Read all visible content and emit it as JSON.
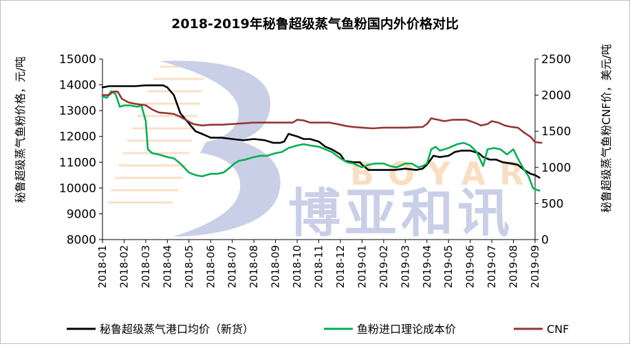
{
  "chart_data": {
    "type": "line",
    "title": "2018-2019年秘鲁超级蒸气鱼粉国内外价格对比",
    "ylabel_left": "秘鲁超级蒸气鱼粉价格，元/吨",
    "ylabel_right": "秘鲁超级蒸气鱼粉CNF价，美元/吨",
    "watermark": {
      "text_cn": "博亚和讯",
      "text_en": "BOYAR"
    },
    "ylim_left": [
      8000,
      15000
    ],
    "yticks_left": [
      "8000",
      "9000",
      "10000",
      "11000",
      "12000",
      "13000",
      "14000",
      "15000"
    ],
    "ylim_right": [
      0,
      2500
    ],
    "yticks_right": [
      "0",
      "500",
      "1000",
      "1500",
      "2000",
      "2500"
    ],
    "x_categories": [
      "2018-01",
      "2018-02",
      "2018-03",
      "2018-04",
      "2018-05",
      "2018-06",
      "2018-07",
      "2018-08",
      "2018-09",
      "2018-10",
      "2018-11",
      "2018-12",
      "2019-01",
      "2019-02",
      "2019-03",
      "2019-04",
      "2019-05",
      "2019-06",
      "2019-07",
      "2019-08",
      "2019-09"
    ],
    "grid": false,
    "legend_position": "bottom",
    "series": [
      {
        "name": "秘鲁超级蒸气港口均价（新货）",
        "axis": "left",
        "color": "#000000",
        "points": [
          [
            0.0,
            13900
          ],
          [
            0.3,
            13950
          ],
          [
            1.0,
            13950
          ],
          [
            1.5,
            13950
          ],
          [
            2.0,
            13980
          ],
          [
            2.8,
            13980
          ],
          [
            3.0,
            13900
          ],
          [
            3.3,
            13600
          ],
          [
            3.6,
            12900
          ],
          [
            4.0,
            12500
          ],
          [
            4.3,
            12200
          ],
          [
            4.6,
            12100
          ],
          [
            5.0,
            11950
          ],
          [
            5.5,
            11950
          ],
          [
            6.0,
            11900
          ],
          [
            6.5,
            11850
          ],
          [
            7.0,
            11900
          ],
          [
            7.5,
            11850
          ],
          [
            7.9,
            11750
          ],
          [
            8.2,
            11750
          ],
          [
            8.4,
            11800
          ],
          [
            8.6,
            12100
          ],
          [
            9.0,
            12000
          ],
          [
            9.3,
            11900
          ],
          [
            9.6,
            11900
          ],
          [
            10.0,
            11800
          ],
          [
            10.3,
            11600
          ],
          [
            10.6,
            11500
          ],
          [
            11.0,
            11300
          ],
          [
            11.2,
            11050
          ],
          [
            11.6,
            11000
          ],
          [
            11.9,
            11000
          ],
          [
            12.0,
            10900
          ],
          [
            12.3,
            10700
          ],
          [
            12.6,
            10700
          ],
          [
            13.0,
            10700
          ],
          [
            13.5,
            10700
          ],
          [
            14.0,
            10750
          ],
          [
            14.5,
            10700
          ],
          [
            14.8,
            10750
          ],
          [
            15.0,
            10900
          ],
          [
            15.3,
            11250
          ],
          [
            15.6,
            11200
          ],
          [
            16.0,
            11250
          ],
          [
            16.3,
            11400
          ],
          [
            16.6,
            11450
          ],
          [
            17.0,
            11450
          ],
          [
            17.4,
            11350
          ],
          [
            17.6,
            11200
          ],
          [
            17.9,
            11100
          ],
          [
            18.2,
            11100
          ],
          [
            18.5,
            11000
          ],
          [
            18.9,
            10950
          ],
          [
            19.2,
            10900
          ],
          [
            19.5,
            10700
          ],
          [
            19.8,
            10550
          ],
          [
            20.0,
            10500
          ],
          [
            20.2,
            10400
          ]
        ]
      },
      {
        "name": "鱼粉进口理论成本价",
        "axis": "left",
        "color": "#00b050",
        "points": [
          [
            0.0,
            13550
          ],
          [
            0.2,
            13500
          ],
          [
            0.4,
            13750
          ],
          [
            0.6,
            13650
          ],
          [
            0.8,
            13150
          ],
          [
            1.0,
            13200
          ],
          [
            1.3,
            13200
          ],
          [
            1.6,
            13150
          ],
          [
            1.8,
            13200
          ],
          [
            2.0,
            12600
          ],
          [
            2.1,
            11500
          ],
          [
            2.3,
            11350
          ],
          [
            2.6,
            11300
          ],
          [
            3.0,
            11200
          ],
          [
            3.3,
            11150
          ],
          [
            3.6,
            10950
          ],
          [
            4.0,
            10600
          ],
          [
            4.3,
            10500
          ],
          [
            4.6,
            10450
          ],
          [
            5.0,
            10550
          ],
          [
            5.3,
            10550
          ],
          [
            5.6,
            10600
          ],
          [
            5.9,
            10800
          ],
          [
            6.1,
            10950
          ],
          [
            6.3,
            11050
          ],
          [
            6.6,
            11100
          ],
          [
            7.0,
            11200
          ],
          [
            7.3,
            11250
          ],
          [
            7.6,
            11250
          ],
          [
            8.0,
            11350
          ],
          [
            8.3,
            11400
          ],
          [
            8.6,
            11550
          ],
          [
            9.0,
            11650
          ],
          [
            9.3,
            11700
          ],
          [
            9.6,
            11650
          ],
          [
            10.0,
            11600
          ],
          [
            10.3,
            11500
          ],
          [
            10.6,
            11400
          ],
          [
            11.0,
            11150
          ],
          [
            11.3,
            11000
          ],
          [
            11.6,
            10950
          ],
          [
            12.0,
            10800
          ],
          [
            12.3,
            10900
          ],
          [
            12.6,
            10950
          ],
          [
            13.0,
            10950
          ],
          [
            13.3,
            10850
          ],
          [
            13.6,
            10800
          ],
          [
            14.0,
            10950
          ],
          [
            14.3,
            10950
          ],
          [
            14.6,
            10800
          ],
          [
            14.8,
            10850
          ],
          [
            15.0,
            10950
          ],
          [
            15.2,
            11500
          ],
          [
            15.4,
            11600
          ],
          [
            15.6,
            11450
          ],
          [
            16.0,
            11550
          ],
          [
            16.4,
            11700
          ],
          [
            16.7,
            11750
          ],
          [
            17.0,
            11650
          ],
          [
            17.3,
            11400
          ],
          [
            17.6,
            10850
          ],
          [
            17.8,
            11500
          ],
          [
            18.1,
            11550
          ],
          [
            18.4,
            11500
          ],
          [
            18.7,
            11300
          ],
          [
            19.0,
            11500
          ],
          [
            19.2,
            11150
          ],
          [
            19.5,
            10700
          ],
          [
            19.7,
            10450
          ],
          [
            19.9,
            10000
          ],
          [
            20.0,
            9950
          ],
          [
            20.2,
            9900
          ]
        ]
      },
      {
        "name": "CNF",
        "axis": "right",
        "color": "#943634",
        "points": [
          [
            0.0,
            2000
          ],
          [
            0.3,
            2000
          ],
          [
            0.5,
            2050
          ],
          [
            0.7,
            2050
          ],
          [
            0.9,
            1950
          ],
          [
            1.2,
            1900
          ],
          [
            1.5,
            1880
          ],
          [
            2.0,
            1860
          ],
          [
            2.3,
            1800
          ],
          [
            2.6,
            1760
          ],
          [
            3.0,
            1750
          ],
          [
            3.3,
            1740
          ],
          [
            3.6,
            1700
          ],
          [
            3.9,
            1650
          ],
          [
            4.2,
            1600
          ],
          [
            4.6,
            1580
          ],
          [
            5.0,
            1590
          ],
          [
            5.5,
            1590
          ],
          [
            6.0,
            1600
          ],
          [
            7.0,
            1620
          ],
          [
            8.0,
            1620
          ],
          [
            8.8,
            1620
          ],
          [
            9.0,
            1660
          ],
          [
            9.3,
            1650
          ],
          [
            9.6,
            1620
          ],
          [
            10.0,
            1620
          ],
          [
            10.5,
            1620
          ],
          [
            11.0,
            1590
          ],
          [
            11.3,
            1570
          ],
          [
            11.6,
            1560
          ],
          [
            12.0,
            1550
          ],
          [
            12.5,
            1540
          ],
          [
            13.0,
            1550
          ],
          [
            14.0,
            1550
          ],
          [
            14.8,
            1560
          ],
          [
            15.0,
            1600
          ],
          [
            15.2,
            1680
          ],
          [
            15.5,
            1660
          ],
          [
            15.8,
            1640
          ],
          [
            16.2,
            1660
          ],
          [
            16.8,
            1660
          ],
          [
            17.2,
            1620
          ],
          [
            17.5,
            1580
          ],
          [
            17.8,
            1600
          ],
          [
            18.0,
            1640
          ],
          [
            18.3,
            1620
          ],
          [
            18.6,
            1580
          ],
          [
            18.9,
            1560
          ],
          [
            19.2,
            1550
          ],
          [
            19.5,
            1480
          ],
          [
            19.8,
            1420
          ],
          [
            20.0,
            1350
          ],
          [
            20.3,
            1340
          ]
        ]
      }
    ]
  }
}
